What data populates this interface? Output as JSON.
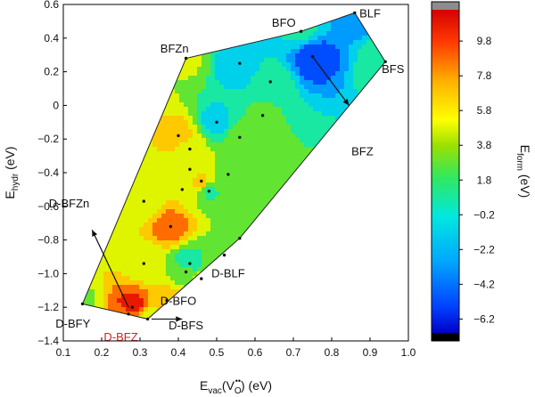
{
  "chart_data": {
    "type": "contour",
    "xlabel": {
      "main": "E",
      "sub": "vac",
      "open": "(V",
      "vsub": "O",
      "sup": "••",
      "close": ") (eV)"
    },
    "ylabel": {
      "main": "E",
      "sub": "hydr",
      "rest": " (eV)"
    },
    "xlim": [
      0.1,
      1.0
    ],
    "ylim": [
      -1.4,
      0.6
    ],
    "x_ticks": [
      "0.1",
      "0.2",
      "0.3",
      "0.4",
      "0.5",
      "0.6",
      "0.7",
      "0.8",
      "0.9",
      "1.0"
    ],
    "y_ticks": [
      "0.6",
      "0.4",
      "0.2",
      "0",
      "−0.2",
      "−0.4",
      "−0.6",
      "−0.8",
      "−1.0",
      "−1.2",
      "−1.4"
    ],
    "colorbar": {
      "label": {
        "main": "E",
        "sub": "form",
        "rest": " (eV)"
      },
      "range": [
        -7.0,
        11.6
      ],
      "ticks": [
        "9.8",
        "7.8",
        "5.8",
        "3.8",
        "1.8",
        "−0.2",
        "−2.2",
        "−4.2",
        "−6.2"
      ],
      "tick_values": [
        9.8,
        7.8,
        5.8,
        3.8,
        1.8,
        -0.2,
        -2.2,
        -4.2,
        -6.2
      ]
    },
    "hull": [
      [
        0.15,
        -1.18
      ],
      [
        0.32,
        -1.27
      ],
      [
        0.56,
        -0.79
      ],
      [
        0.94,
        0.26
      ],
      [
        0.86,
        0.55
      ],
      [
        0.72,
        0.44
      ],
      [
        0.42,
        0.28
      ]
    ],
    "points": [
      {
        "name": "BLF",
        "x": 0.86,
        "y": 0.55,
        "value": -3.5
      },
      {
        "name": "BFO",
        "x": 0.72,
        "y": 0.44,
        "value": 0.3
      },
      {
        "name": "BFZn",
        "x": 0.42,
        "y": 0.28,
        "value": 4.0
      },
      {
        "name": "BFS",
        "x": 0.94,
        "y": 0.26,
        "value": 1.5
      },
      {
        "name": "BFZ",
        "x": 0.75,
        "y": 0.29,
        "value": -5.6
      },
      {
        "name": "",
        "x": 0.56,
        "y": 0.25,
        "value": -2.0
      },
      {
        "name": "",
        "x": 0.64,
        "y": 0.14,
        "value": 1.0
      },
      {
        "name": "",
        "x": 0.5,
        "y": -0.1,
        "value": -0.8
      },
      {
        "name": "",
        "x": 0.62,
        "y": -0.06,
        "value": 2.0
      },
      {
        "name": "",
        "x": 0.56,
        "y": -0.19,
        "value": 2.5
      },
      {
        "name": "",
        "x": 0.4,
        "y": -0.18,
        "value": 6.5
      },
      {
        "name": "",
        "x": 0.43,
        "y": -0.26,
        "value": 5.0
      },
      {
        "name": "",
        "x": 0.43,
        "y": -0.38,
        "value": 5.2
      },
      {
        "name": "",
        "x": 0.53,
        "y": -0.41,
        "value": 2.8
      },
      {
        "name": "",
        "x": 0.46,
        "y": -0.45,
        "value": 6.2
      },
      {
        "name": "",
        "x": 0.41,
        "y": -0.5,
        "value": 5.8
      },
      {
        "name": "",
        "x": 0.48,
        "y": -0.51,
        "value": 1.6
      },
      {
        "name": "",
        "x": 0.31,
        "y": -0.57,
        "value": 4.3
      },
      {
        "name": "",
        "x": 0.38,
        "y": -0.72,
        "value": 9.0
      },
      {
        "name": "",
        "x": 0.56,
        "y": -0.79,
        "value": 3.5
      },
      {
        "name": "",
        "x": 0.52,
        "y": -0.89,
        "value": 3.0
      },
      {
        "name": "",
        "x": 0.31,
        "y": -0.94,
        "value": 4.5
      },
      {
        "name": "",
        "x": 0.43,
        "y": -0.94,
        "value": 0.5
      },
      {
        "name": "D-BLF",
        "x": 0.46,
        "y": -1.03,
        "value": 4.2
      },
      {
        "name": "",
        "x": 0.42,
        "y": -0.99,
        "value": 3.0
      },
      {
        "name": "D-BFO",
        "x": 0.37,
        "y": -1.16,
        "value": 6.8
      },
      {
        "name": "D-BFZn",
        "x": 0.28,
        "y": -1.2,
        "value": 11.0
      },
      {
        "name": "D-BFY",
        "x": 0.15,
        "y": -1.18,
        "value": 3.5
      },
      {
        "name": "D-BFS",
        "x": 0.32,
        "y": -1.27,
        "value": 4.0
      },
      {
        "name": "D-BFZ",
        "x": 0.27,
        "y": -1.24,
        "value": 8.8
      }
    ],
    "annotations": [
      {
        "text": "BLF",
        "x": 0.9,
        "y": 0.545,
        "color": "#111111"
      },
      {
        "text": "BFO",
        "x": 0.675,
        "y": 0.49,
        "color": "#111111"
      },
      {
        "text": "BFZn",
        "x": 0.39,
        "y": 0.335,
        "color": "#111111"
      },
      {
        "text": "BFS",
        "x": 0.96,
        "y": 0.215,
        "color": "#111111"
      },
      {
        "text": "BFZ",
        "x": 0.88,
        "y": -0.275,
        "color": "#111111"
      },
      {
        "text": "D-BFZn",
        "x": 0.115,
        "y": -0.585,
        "color": "#111111"
      },
      {
        "text": "D-BLF",
        "x": 0.53,
        "y": -1.0,
        "color": "#111111"
      },
      {
        "text": "D-BFO",
        "x": 0.4,
        "y": -1.165,
        "color": "#111111"
      },
      {
        "text": "D-BFY",
        "x": 0.125,
        "y": -1.3,
        "color": "#111111"
      },
      {
        "text": "D-BFS",
        "x": 0.42,
        "y": -1.31,
        "color": "#111111"
      },
      {
        "text": "D-BFZ",
        "x": 0.25,
        "y": -1.38,
        "color": "#d42020"
      }
    ],
    "arrows": [
      {
        "from": [
          0.75,
          0.29
        ],
        "to": [
          0.845,
          0.0
        ]
      },
      {
        "from": [
          0.27,
          -1.2
        ],
        "to": [
          0.175,
          -0.74
        ]
      },
      {
        "from": [
          0.33,
          -1.27
        ],
        "to": [
          0.41,
          -1.27
        ]
      }
    ]
  }
}
